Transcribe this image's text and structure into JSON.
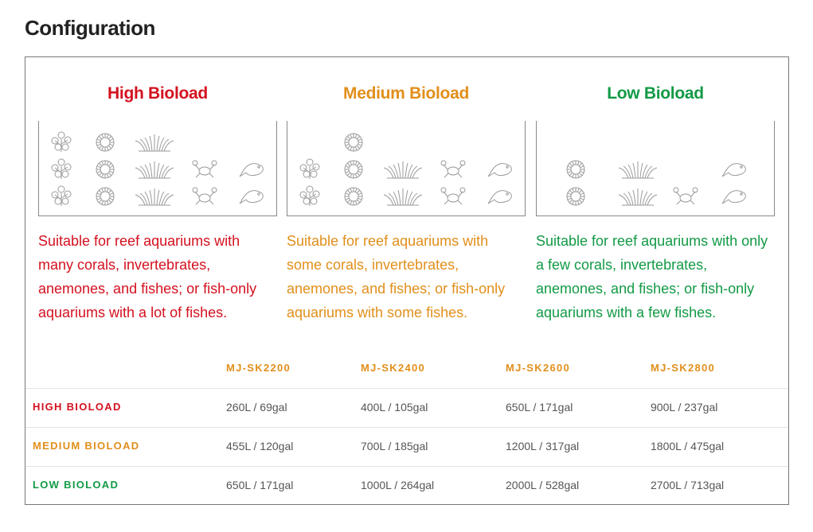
{
  "header": {
    "title": "Configuration"
  },
  "bioloads": [
    {
      "title": "High Bioload",
      "color": "#d3111f",
      "description": "Suitable for reef aquariums with many corals, invertebrates, anemones, and fishes; or fish-only aquariums with a lot of fishes."
    },
    {
      "title": "Medium Bioload",
      "color": "#e18f1b",
      "description": "Suitable for reef aquariums with some corals, invertebrates, anemones, and fishes; or fish-only aquariums with some fishes."
    },
    {
      "title": "Low Bioload",
      "color": "#129a45",
      "description": "Suitable for reef aquariums with only a few corals, invertebrates, anemones, and fishes; or fish-only aquariums with a few fishes."
    }
  ],
  "table": {
    "columns": [
      "MJ-SK2200",
      "MJ-SK2400",
      "MJ-SK2600",
      "MJ-SK2800"
    ],
    "rows": [
      {
        "label": "HIGH BIOLOAD",
        "cells": [
          "260L / 69gal",
          "400L / 105gal",
          "650L / 171gal",
          "900L / 237gal"
        ]
      },
      {
        "label": "MEDIUM BIOLOAD",
        "cells": [
          "455L / 120gal",
          "700L / 185gal",
          "1200L / 317gal",
          "1800L / 475gal"
        ]
      },
      {
        "label": "LOW BIOLOAD",
        "cells": [
          "650L / 171gal",
          "1000L / 264gal",
          "2000L / 528gal",
          "2700L / 713gal"
        ]
      }
    ]
  }
}
